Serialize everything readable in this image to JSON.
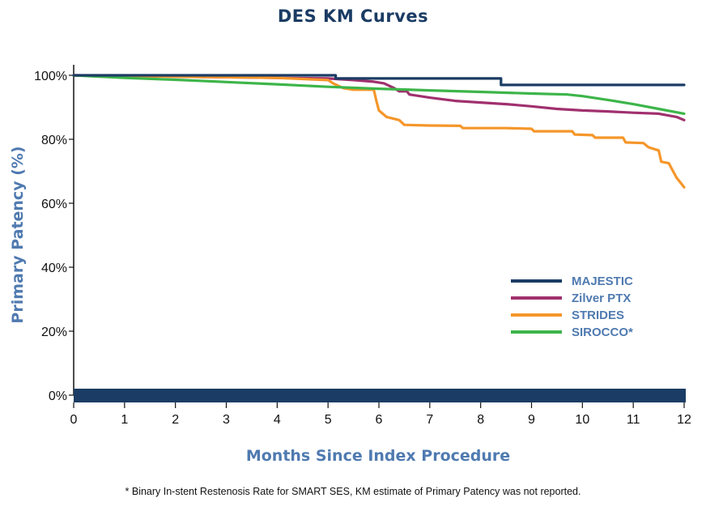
{
  "chart_data": {
    "type": "line",
    "title": "DES KM Curves",
    "xlabel": "Months Since Index Procedure",
    "ylabel": "Primary Patency (%)",
    "xlim": [
      0,
      12
    ],
    "ylim": [
      0,
      100
    ],
    "x_ticks": [
      "0",
      "1",
      "2",
      "3",
      "4",
      "5",
      "6",
      "7",
      "8",
      "9",
      "10",
      "11",
      "12"
    ],
    "y_ticks": [
      "0%",
      "20%",
      "40%",
      "60%",
      "80%",
      "100%"
    ],
    "y_tick_values": [
      0,
      20,
      40,
      60,
      80,
      100
    ],
    "legend_position": "right",
    "series": [
      {
        "name": "MAJESTIC",
        "color": "#1b3c64",
        "step": true,
        "points": [
          [
            0,
            100
          ],
          [
            5.15,
            100
          ],
          [
            5.15,
            99
          ],
          [
            8.4,
            99
          ],
          [
            8.4,
            97
          ],
          [
            12,
            97
          ]
        ]
      },
      {
        "name": "Zilver PTX",
        "color": "#a0306e",
        "step": false,
        "points": [
          [
            0,
            100
          ],
          [
            4,
            99.2
          ],
          [
            5,
            99
          ],
          [
            5.5,
            98.5
          ],
          [
            5.9,
            98
          ],
          [
            6.1,
            97.5
          ],
          [
            6.3,
            96
          ],
          [
            6.4,
            95
          ],
          [
            6.55,
            95
          ],
          [
            6.6,
            94
          ],
          [
            7,
            93
          ],
          [
            7.5,
            92
          ],
          [
            8,
            91.5
          ],
          [
            8.5,
            91
          ],
          [
            9,
            90.3
          ],
          [
            9.5,
            89.5
          ],
          [
            10,
            89
          ],
          [
            10.5,
            88.7
          ],
          [
            11,
            88.3
          ],
          [
            11.5,
            88
          ],
          [
            11.85,
            87
          ],
          [
            12,
            86
          ]
        ]
      },
      {
        "name": "STRIDES",
        "color": "#f5962a",
        "step": false,
        "points": [
          [
            0,
            100
          ],
          [
            4,
            99.2
          ],
          [
            5,
            98.5
          ],
          [
            5.1,
            97.5
          ],
          [
            5.3,
            96
          ],
          [
            5.5,
            95.5
          ],
          [
            5.9,
            95.5
          ],
          [
            5.95,
            92
          ],
          [
            6,
            89
          ],
          [
            6.15,
            87
          ],
          [
            6.4,
            86
          ],
          [
            6.5,
            84.5
          ],
          [
            7,
            84.3
          ],
          [
            7.6,
            84.2
          ],
          [
            7.65,
            83.5
          ],
          [
            8.5,
            83.5
          ],
          [
            9,
            83.3
          ],
          [
            9.05,
            82.5
          ],
          [
            9.8,
            82.5
          ],
          [
            9.85,
            81.5
          ],
          [
            10.2,
            81.3
          ],
          [
            10.25,
            80.5
          ],
          [
            10.8,
            80.5
          ],
          [
            10.85,
            79
          ],
          [
            11.2,
            78.8
          ],
          [
            11.3,
            77.5
          ],
          [
            11.5,
            76.5
          ],
          [
            11.55,
            73
          ],
          [
            11.7,
            72.5
          ],
          [
            11.85,
            68
          ],
          [
            11.95,
            66
          ],
          [
            12,
            65
          ]
        ]
      },
      {
        "name": "SIROCCO*",
        "color": "#3db54a",
        "step": false,
        "points": [
          [
            0,
            100
          ],
          [
            1,
            99.2
          ],
          [
            2,
            98.6
          ],
          [
            3,
            97.9
          ],
          [
            4,
            97.2
          ],
          [
            5,
            96.4
          ],
          [
            6,
            95.8
          ],
          [
            7,
            95.3
          ],
          [
            8,
            94.8
          ],
          [
            9,
            94.3
          ],
          [
            9.7,
            94
          ],
          [
            10,
            93.5
          ],
          [
            10.5,
            92.3
          ],
          [
            11,
            91
          ],
          [
            11.5,
            89.5
          ],
          [
            12,
            88
          ]
        ]
      }
    ]
  },
  "footnote": "* Binary In-stent Restenosis Rate for SMART SES, KM estimate of Primary Patency was not reported."
}
